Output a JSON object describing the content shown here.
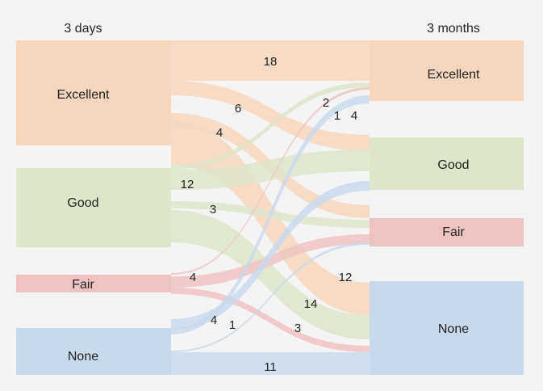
{
  "headers": {
    "left": "3 days",
    "right": "3 months"
  },
  "colors": {
    "Excellent": "#f6d6bd",
    "Good": "#dde5ca",
    "Fair": "#f0c3c3",
    "None": "#c9d9ec"
  },
  "left_nodes": [
    {
      "label": "Excellent",
      "color_key": "Excellent"
    },
    {
      "label": "Good",
      "color_key": "Good"
    },
    {
      "label": "Fair",
      "color_key": "Fair"
    },
    {
      "label": "None",
      "color_key": "None"
    }
  ],
  "right_nodes": [
    {
      "label": "Excellent",
      "color_key": "Excellent"
    },
    {
      "label": "Good",
      "color_key": "Good"
    },
    {
      "label": "Fair",
      "color_key": "Fair"
    },
    {
      "label": "None",
      "color_key": "None"
    }
  ],
  "flows": [
    {
      "from": "Excellent",
      "to": "Excellent",
      "value": "18"
    },
    {
      "from": "Excellent",
      "to": "Good",
      "value": "6"
    },
    {
      "from": "Excellent",
      "to": "Fair",
      "value": "4"
    },
    {
      "from": "Excellent",
      "to": "None",
      "value": "12"
    },
    {
      "from": "Good",
      "to": "Excellent",
      "value": "2"
    },
    {
      "from": "Good",
      "to": "Good",
      "value": "12"
    },
    {
      "from": "Good",
      "to": "Fair",
      "value": "3"
    },
    {
      "from": "Good",
      "to": "None",
      "value": "14"
    },
    {
      "from": "Fair",
      "to": "Excellent",
      "value": "1"
    },
    {
      "from": "Fair",
      "to": "Fair",
      "value": "4"
    },
    {
      "from": "Fair",
      "to": "None",
      "value": "3"
    },
    {
      "from": "None",
      "to": "Excellent",
      "value": "4"
    },
    {
      "from": "None",
      "to": "Good",
      "value": "4"
    },
    {
      "from": "None",
      "to": "Fair",
      "value": "1"
    },
    {
      "from": "None",
      "to": "None",
      "value": "11"
    }
  ]
}
